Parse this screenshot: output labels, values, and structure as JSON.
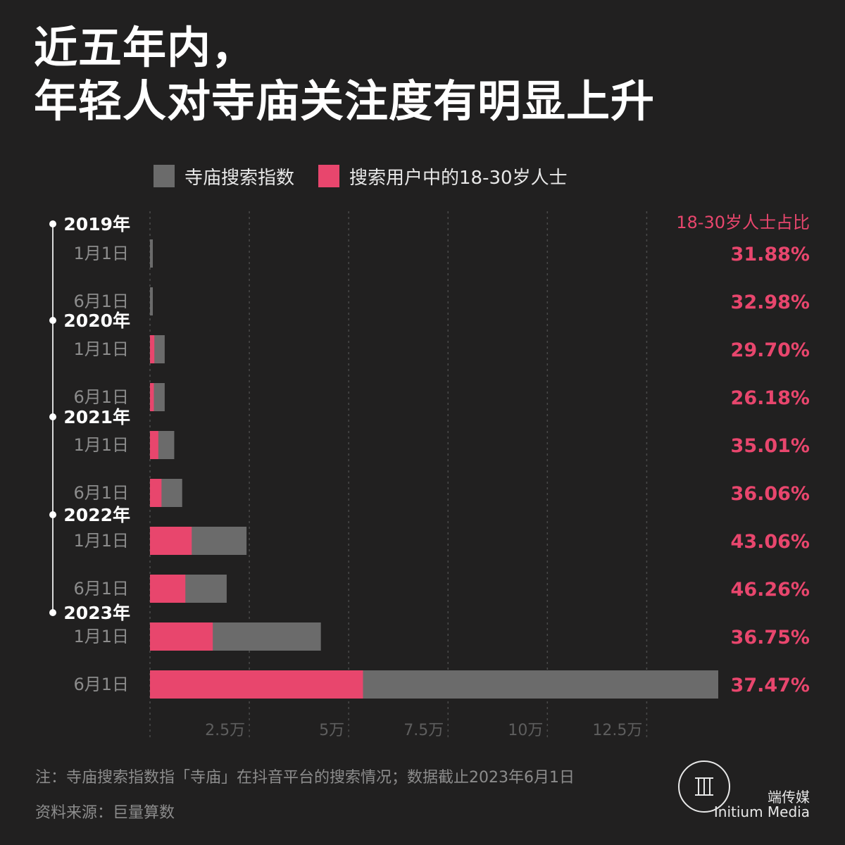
{
  "title": {
    "line1": "近五年内，",
    "line2": "年轻人对寺庙关注度有明显上升"
  },
  "legend": {
    "temple_index": "寺庙搜索指数",
    "young_users": "搜索用户中的18-30岁人士"
  },
  "share_header": "18-30岁人士占比",
  "footnote": "注：寺庙搜索指数指「寺庙」在抖音平台的搜索情况；数据截止2023年6月1日",
  "source": "资料来源：巨量算数",
  "brand": {
    "cn": "端传媒",
    "en": "Initium Media"
  },
  "colors": {
    "background": "#212020",
    "temple_index": "#6b6b6b",
    "young_users": "#e8466d",
    "share_text": "#e8466d",
    "year_text": "#ffffff",
    "date_text": "#8c8c8c"
  },
  "chart_data": {
    "type": "bar",
    "orientation": "horizontal",
    "stacked_overlay": true,
    "years": [
      "2019年",
      "2020年",
      "2021年",
      "2022年",
      "2023年"
    ],
    "categories": [
      "1月1日",
      "6月1日",
      "1月1日",
      "6月1日",
      "1月1日",
      "6月1日",
      "1月1日",
      "6月1日",
      "1月1日",
      "6月1日"
    ],
    "category_years": [
      "2019年",
      "2019年",
      "2020年",
      "2020年",
      "2021年",
      "2021年",
      "2022年",
      "2022年",
      "2023年",
      "2023年"
    ],
    "series": [
      {
        "name": "寺庙搜索指数",
        "values": [
          500,
          500,
          3700,
          3700,
          6100,
          8100,
          24300,
          19300,
          43000,
          143000
        ]
      },
      {
        "name": "搜索用户中的18-30岁人士",
        "values": [
          160,
          160,
          1100,
          970,
          2100,
          2900,
          10500,
          8900,
          15800,
          53600
        ]
      }
    ],
    "share_labels": [
      "31.88%",
      "32.98%",
      "29.70%",
      "26.18%",
      "35.01%",
      "36.06%",
      "43.06%",
      "46.26%",
      "36.75%",
      "37.47%"
    ],
    "x_ticks": [
      "2.5万",
      "5万",
      "7.5万",
      "10万",
      "12.5万"
    ],
    "x_tick_values": [
      25000,
      50000,
      75000,
      100000,
      125000
    ],
    "xlim": [
      0,
      143000
    ],
    "grid": "vertical dashed"
  }
}
